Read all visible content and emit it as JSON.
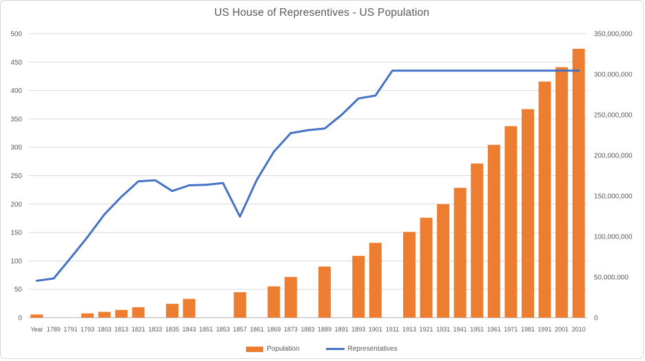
{
  "chart": {
    "title": "US House of Representives - US Population",
    "colors": {
      "bar_fill": "#ED7D31",
      "line_stroke": "#4472C4",
      "text": "#595959",
      "gridline": "#D9D9D9",
      "axis_line": "#ACACAC",
      "chart_border": "#D6D6D6",
      "background": "#FFFFFF"
    },
    "legend": {
      "items": [
        {
          "label": "Population",
          "swatch": "bar",
          "color": "#ED7D31"
        },
        {
          "label": "Representatives",
          "swatch": "line",
          "color": "#4472C4"
        }
      ]
    }
  },
  "chart_data": {
    "type": "combo-bar-line",
    "title": "US House of Representives - US Population",
    "grid": "horizontal",
    "legend_position": "bottom",
    "categories": [
      "Year",
      "1789",
      "1791",
      "1793",
      "1803",
      "1813",
      "1821",
      "1833",
      "1835",
      "1843",
      "1851",
      "1853",
      "1857",
      "1861",
      "1869",
      "1873",
      "1883",
      "1889",
      "1891",
      "1893",
      "1901",
      "1911",
      "1913",
      "1921",
      "1931",
      "1941",
      "1951",
      "1961",
      "1971",
      "1981",
      "1991",
      "2001",
      "2010"
    ],
    "series": [
      {
        "name": "Population",
        "type": "bar",
        "axis": "right",
        "color": "#ED7D31",
        "values": [
          3900000,
          null,
          null,
          5300000,
          7200000,
          9600000,
          12900000,
          null,
          17100000,
          23200000,
          null,
          null,
          31400000,
          null,
          38600000,
          50200000,
          null,
          63000000,
          null,
          76200000,
          92200000,
          null,
          105700000,
          123200000,
          140000000,
          160000000,
          190000000,
          213000000,
          236000000,
          257000000,
          291000000,
          308700000,
          331400000
        ]
      },
      {
        "name": "Representatives",
        "type": "line",
        "axis": "left",
        "color": "#4472C4",
        "values": [
          65,
          69,
          105,
          142,
          182,
          213,
          240,
          242,
          223,
          233,
          234,
          237,
          178,
          243,
          292,
          325,
          330,
          333,
          357,
          386,
          391,
          435,
          435,
          435,
          435,
          435,
          435,
          435,
          435,
          435,
          435,
          435,
          435
        ]
      }
    ],
    "left_axis": {
      "min": 0,
      "max": 500,
      "step": 50,
      "ticks": [
        {
          "label": "500",
          "value": 500
        },
        {
          "label": "450",
          "value": 450
        },
        {
          "label": "400",
          "value": 400
        },
        {
          "label": "350",
          "value": 350
        },
        {
          "label": "300",
          "value": 300
        },
        {
          "label": "250",
          "value": 250
        },
        {
          "label": "200",
          "value": 200
        },
        {
          "label": "150",
          "value": 150
        },
        {
          "label": "100",
          "value": 100
        },
        {
          "label": "50",
          "value": 50
        },
        {
          "label": "0",
          "value": 0
        }
      ]
    },
    "right_axis": {
      "min": 0,
      "max": 350000000,
      "step": 50000000,
      "ticks": [
        {
          "label": "350,000,000",
          "value": 350000000
        },
        {
          "label": "300,000,000",
          "value": 300000000
        },
        {
          "label": "250,000,000",
          "value": 250000000
        },
        {
          "label": "200,000,000",
          "value": 200000000
        },
        {
          "label": "150,000,000",
          "value": 150000000
        },
        {
          "label": "100,000,000",
          "value": 100000000
        },
        {
          "label": "50,000,000",
          "value": 50000000
        },
        {
          "label": "0",
          "value": 0
        }
      ]
    }
  }
}
